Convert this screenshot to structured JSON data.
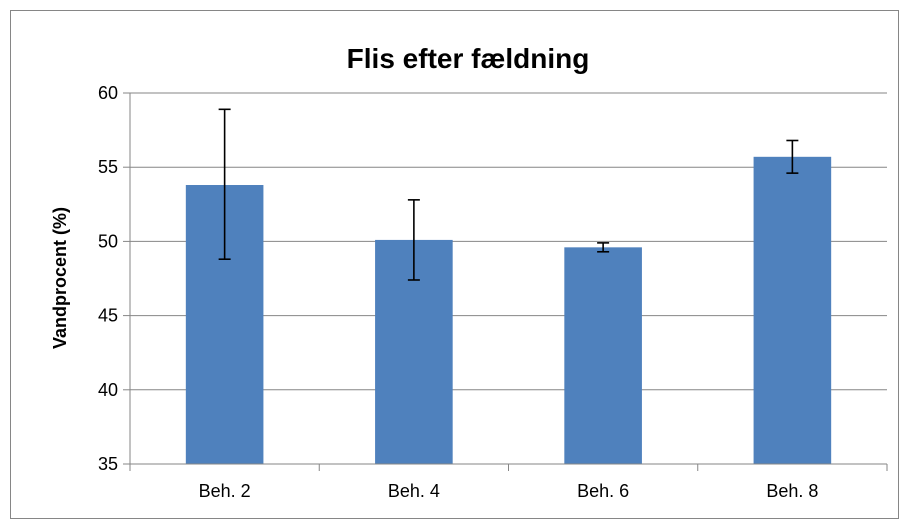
{
  "chart_data": {
    "type": "bar",
    "title": "Flis efter fældning",
    "xlabel": "",
    "ylabel": "Vandprocent (%)",
    "categories": [
      "Beh. 2",
      "Beh. 4",
      "Beh. 6",
      "Beh. 8"
    ],
    "values": [
      53.8,
      50.1,
      49.6,
      55.7
    ],
    "error_low": [
      48.8,
      47.4,
      49.3,
      54.6
    ],
    "error_high": [
      58.9,
      52.8,
      49.9,
      56.8
    ],
    "ylim": [
      35,
      60
    ],
    "yticks": [
      35,
      40,
      45,
      50,
      55,
      60
    ],
    "grid": true,
    "legend": "none",
    "bar_color": "#4f81bd",
    "grid_color": "#868686"
  }
}
